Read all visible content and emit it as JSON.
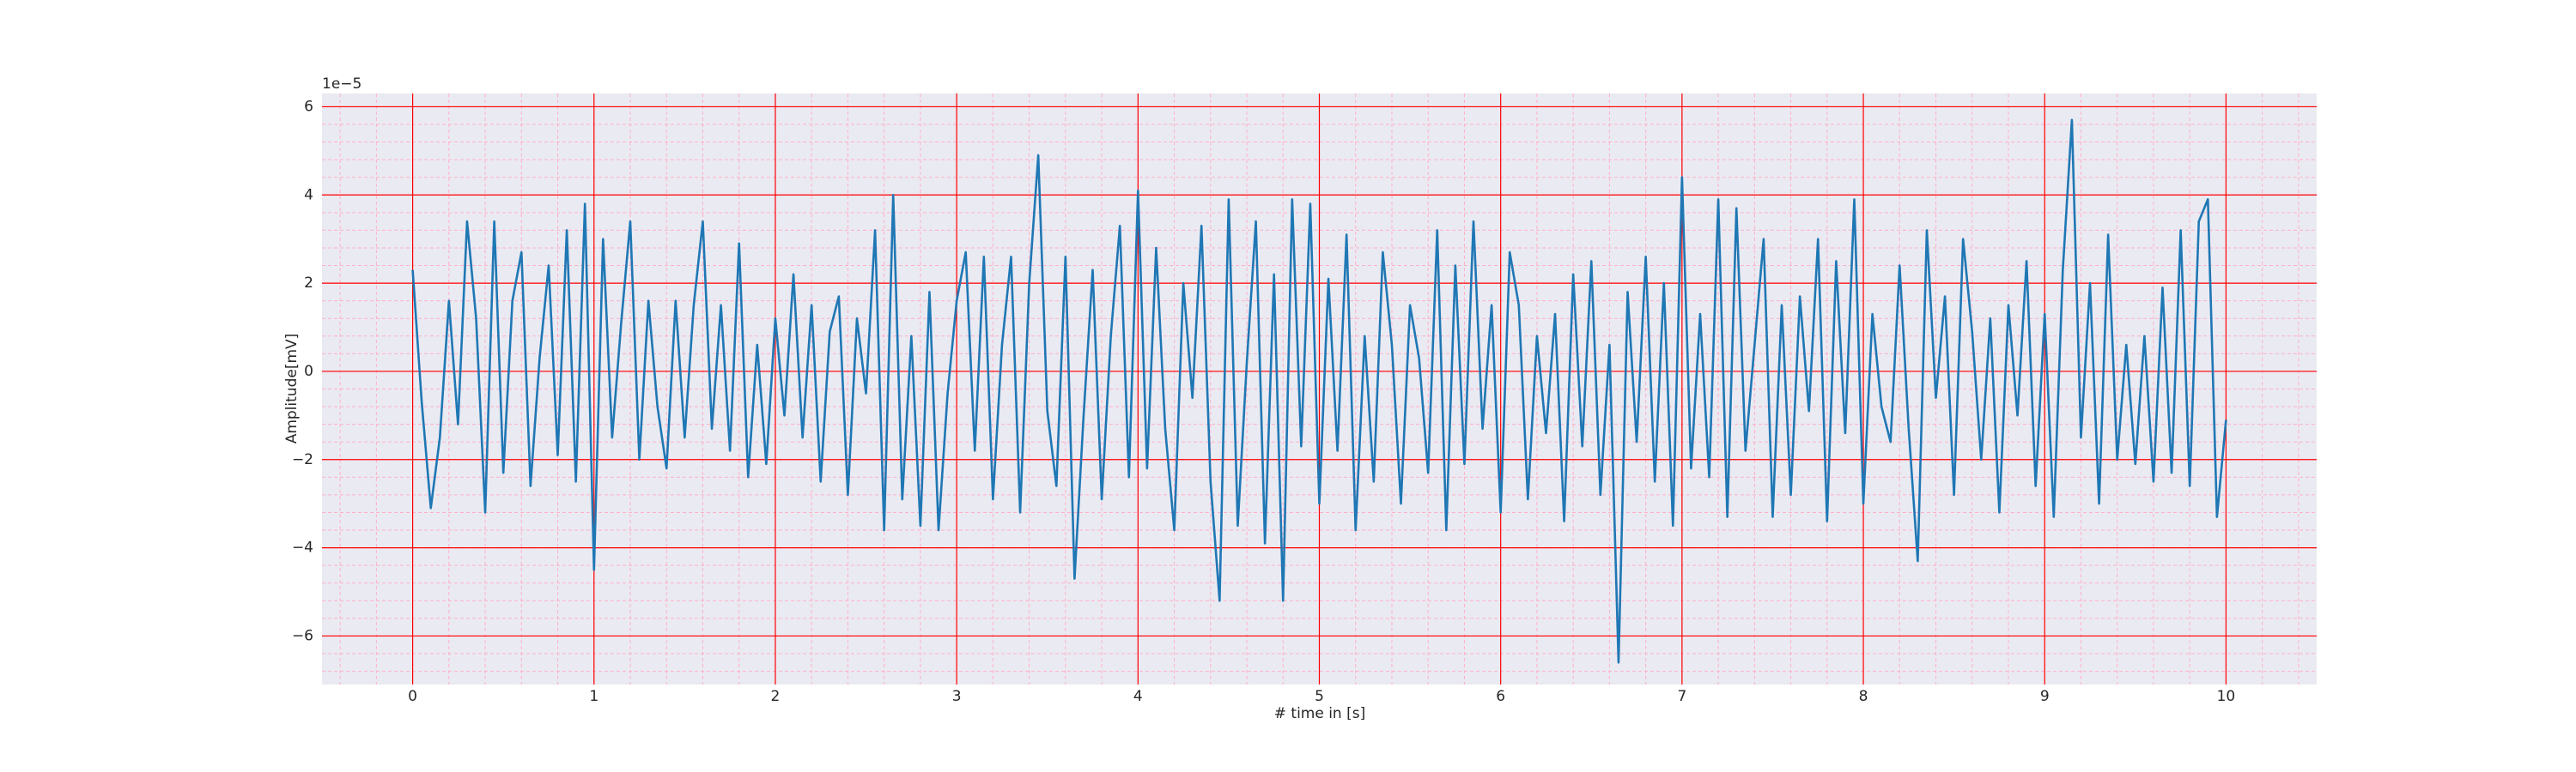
{
  "chart_data": {
    "type": "line",
    "xlabel": "# time in [s]",
    "ylabel": "Amplitude[mV]",
    "y_offset_label": "1e−5",
    "xlim": [
      -0.5,
      10.5
    ],
    "ylim": [
      -7.1,
      6.3
    ],
    "xticks": [
      0,
      1,
      2,
      3,
      4,
      5,
      6,
      7,
      8,
      9,
      10
    ],
    "yticks": [
      {
        "value": -6,
        "label": "−6"
      },
      {
        "value": -4,
        "label": "−4"
      },
      {
        "value": -2,
        "label": "−2"
      },
      0,
      2,
      4,
      6
    ],
    "xminorticks": [
      -0.4,
      -0.2,
      0,
      0.2,
      0.4,
      0.6,
      0.8,
      1,
      1.2,
      1.4,
      1.6,
      1.8,
      2,
      2.2,
      2.4,
      2.6,
      2.8,
      3,
      3.2,
      3.4,
      3.6,
      3.8,
      4,
      4.2,
      4.4,
      4.6,
      4.8,
      5,
      5.2,
      5.4,
      5.6,
      5.8,
      6,
      6.2,
      6.4,
      6.6,
      6.8,
      7,
      7.2,
      7.4,
      7.6,
      7.8,
      8,
      8.2,
      8.4,
      8.6,
      8.8,
      9,
      9.2,
      9.4,
      9.6,
      9.8,
      10,
      10.2,
      10.4
    ],
    "yminorticks": [
      -6.8,
      -6.4,
      -6,
      -5.6,
      -5.2,
      -4.8,
      -4.4,
      -4,
      -3.6,
      -3.2,
      -2.8,
      -2.4,
      -2,
      -1.6,
      -1.2,
      -0.8,
      -0.4,
      0,
      0.4,
      0.8,
      1.2,
      1.6,
      2,
      2.4,
      2.8,
      3.2,
      3.6,
      4,
      4.4,
      4.8,
      5.2,
      5.6,
      6
    ],
    "grid": true,
    "grid_color": "#ff0000",
    "minor_grid_color": "#ffb0c8",
    "background": "#eaeaf2",
    "series": [
      {
        "color": "#1f77b4",
        "x": [
          0,
          0.05,
          0.1,
          0.15,
          0.2,
          0.25,
          0.3,
          0.35,
          0.4,
          0.45,
          0.5,
          0.55,
          0.6,
          0.65,
          0.7,
          0.75,
          0.8,
          0.85,
          0.9,
          0.95,
          1,
          1.05,
          1.1,
          1.15,
          1.2,
          1.25,
          1.3,
          1.35,
          1.4,
          1.45,
          1.5,
          1.55,
          1.6,
          1.65,
          1.7,
          1.75,
          1.8,
          1.85,
          1.9,
          1.95,
          2,
          2.05,
          2.1,
          2.15,
          2.2,
          2.25,
          2.3,
          2.35,
          2.4,
          2.45,
          2.5,
          2.55,
          2.6,
          2.65,
          2.7,
          2.75,
          2.8,
          2.85,
          2.9,
          2.95,
          3,
          3.05,
          3.1,
          3.15,
          3.2,
          3.25,
          3.3,
          3.35,
          3.4,
          3.45,
          3.5,
          3.55,
          3.6,
          3.65,
          3.7,
          3.75,
          3.8,
          3.85,
          3.9,
          3.95,
          4,
          4.05,
          4.1,
          4.15,
          4.2,
          4.25,
          4.3,
          4.35,
          4.4,
          4.45,
          4.5,
          4.55,
          4.6,
          4.65,
          4.7,
          4.75,
          4.8,
          4.85,
          4.9,
          4.95,
          5,
          5.05,
          5.1,
          5.15,
          5.2,
          5.25,
          5.3,
          5.35,
          5.4,
          5.45,
          5.5,
          5.55,
          5.6,
          5.65,
          5.7,
          5.75,
          5.8,
          5.85,
          5.9,
          5.95,
          6,
          6.05,
          6.1,
          6.15,
          6.2,
          6.25,
          6.3,
          6.35,
          6.4,
          6.45,
          6.5,
          6.55,
          6.6,
          6.65,
          6.7,
          6.75,
          6.8,
          6.85,
          6.9,
          6.95,
          7,
          7.05,
          7.1,
          7.15,
          7.2,
          7.25,
          7.3,
          7.35,
          7.4,
          7.45,
          7.5,
          7.55,
          7.6,
          7.65,
          7.7,
          7.75,
          7.8,
          7.85,
          7.9,
          7.95,
          8,
          8.05,
          8.1,
          8.15,
          8.2,
          8.25,
          8.3,
          8.35,
          8.4,
          8.45,
          8.5,
          8.55,
          8.6,
          8.65,
          8.7,
          8.75,
          8.8,
          8.85,
          8.9,
          8.95,
          9,
          9.05,
          9.1,
          9.15,
          9.2,
          9.25,
          9.3,
          9.35,
          9.4,
          9.45,
          9.5,
          9.55,
          9.6,
          9.65,
          9.7,
          9.75,
          9.8,
          9.85,
          9.9,
          9.95,
          10
        ],
        "values": [
          2.3,
          -0.7,
          -3.1,
          -1.5,
          1.6,
          -1.2,
          3.4,
          1.2,
          -3.2,
          3.4,
          -2.3,
          1.6,
          2.7,
          -2.6,
          0.3,
          2.4,
          -1.9,
          3.2,
          -2.5,
          3.8,
          -4.5,
          3.0,
          -1.5,
          1.1,
          3.4,
          -2.0,
          1.6,
          -0.8,
          -2.2,
          1.6,
          -1.5,
          1.5,
          3.4,
          -1.3,
          1.5,
          -1.8,
          2.9,
          -2.4,
          0.6,
          -2.1,
          1.2,
          -1.0,
          2.2,
          -1.5,
          1.5,
          -2.5,
          0.9,
          1.7,
          -2.8,
          1.2,
          -0.5,
          3.2,
          -3.6,
          4.0,
          -2.9,
          0.8,
          -3.5,
          1.8,
          -3.6,
          -0.5,
          1.6,
          2.7,
          -1.8,
          2.6,
          -2.9,
          0.6,
          2.6,
          -3.2,
          2.0,
          4.9,
          -0.9,
          -2.6,
          2.6,
          -4.7,
          -1.0,
          2.3,
          -2.9,
          0.8,
          3.3,
          -2.4,
          4.1,
          -2.2,
          2.8,
          -1.3,
          -3.6,
          2.0,
          -0.6,
          3.3,
          -2.5,
          -5.2,
          3.9,
          -3.5,
          0.2,
          3.4,
          -3.9,
          2.2,
          -5.2,
          3.9,
          -1.7,
          3.8,
          -3.0,
          2.1,
          -1.8,
          3.1,
          -3.6,
          0.8,
          -2.5,
          2.7,
          0.6,
          -3.0,
          1.5,
          0.3,
          -2.3,
          3.2,
          -3.6,
          2.4,
          -2.1,
          3.4,
          -1.3,
          1.5,
          -3.2,
          2.7,
          1.5,
          -2.9,
          0.8,
          -1.4,
          1.3,
          -3.4,
          2.2,
          -1.7,
          2.5,
          -2.8,
          0.6,
          -6.6,
          1.8,
          -1.6,
          2.6,
          -2.5,
          2.0,
          -3.5,
          4.4,
          -2.2,
          1.3,
          -2.4,
          3.9,
          -3.3,
          3.7,
          -1.8,
          0.6,
          3.0,
          -3.3,
          1.5,
          -2.8,
          1.7,
          -0.9,
          3.0,
          -3.4,
          2.5,
          -1.4,
          3.9,
          -3.0,
          1.3,
          -0.8,
          -1.6,
          2.4,
          -1.3,
          -4.3,
          3.2,
          -0.6,
          1.7,
          -2.8,
          3.0,
          0.9,
          -2.0,
          1.2,
          -3.2,
          1.5,
          -1.0,
          2.5,
          -2.6,
          1.3,
          -3.3,
          2.3,
          5.7,
          -1.5,
          2.0,
          -3.0,
          3.1,
          -2.0,
          0.6,
          -2.1,
          0.8,
          -2.5,
          1.9,
          -2.3,
          3.2,
          -2.6,
          3.4,
          3.9,
          -3.3,
          -1.1
        ]
      }
    ]
  }
}
